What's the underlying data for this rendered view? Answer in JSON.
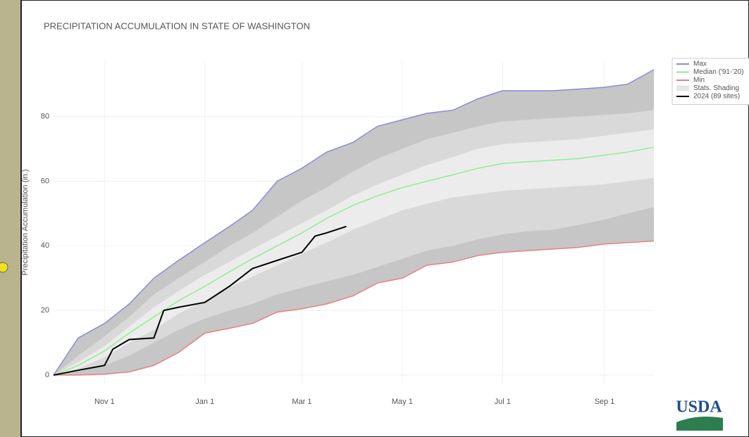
{
  "chart_data": {
    "type": "line",
    "title": "PRECIPITATION ACCUMULATION IN STATE OF WASHINGTON",
    "y_label": "Precipitation Accumulation (in.)",
    "x": [
      0,
      15,
      31,
      46,
      61,
      76,
      92,
      107,
      121,
      136,
      151,
      166,
      182,
      197,
      212,
      227,
      243,
      258,
      273,
      288,
      304,
      319,
      334,
      349,
      365
    ],
    "xlim": [
      0,
      365
    ],
    "xticks": [
      {
        "value": 31,
        "label": "Nov 1"
      },
      {
        "value": 92,
        "label": "Jan 1"
      },
      {
        "value": 151,
        "label": "Mar 1"
      },
      {
        "value": 212,
        "label": "May 1"
      },
      {
        "value": 273,
        "label": "Jul 1"
      },
      {
        "value": 335,
        "label": "Sep 1"
      }
    ],
    "ylim": [
      -2.6,
      96.9
    ],
    "yticks": [
      0,
      20,
      40,
      60,
      80
    ],
    "grid": true,
    "series": [
      {
        "name": "Max",
        "color": "#8a8ae0",
        "values": [
          0,
          11.5,
          16,
          22,
          30,
          35.5,
          41,
          46,
          51,
          60,
          64,
          69,
          72,
          77,
          79,
          81,
          82,
          85.5,
          88,
          88,
          88,
          88.5,
          89,
          90,
          94.5
        ]
      },
      {
        "name": "Median ('91-'20)",
        "color": "#90ee90",
        "values": [
          0,
          3,
          7.5,
          13,
          18,
          23,
          27.5,
          32,
          36,
          40,
          44,
          48.5,
          52.5,
          55.5,
          58,
          60,
          62,
          64,
          65.5,
          66,
          66.5,
          67,
          68,
          69,
          70.5
        ]
      },
      {
        "name": "Min",
        "color": "#e88080",
        "values": [
          0,
          0,
          0.3,
          1,
          3,
          7,
          13,
          14.5,
          16,
          19.5,
          20.5,
          22,
          24.5,
          28.5,
          30,
          34,
          35,
          37,
          38,
          38.5,
          39,
          39.5,
          40.5,
          41,
          41.5
        ]
      },
      {
        "name": "2024 (89 sites)",
        "color": "#000000",
        "x": [
          0,
          15,
          31,
          36,
          46,
          61,
          67,
          76,
          92,
          107,
          121,
          136,
          151,
          159,
          166,
          178
        ],
        "values": [
          0,
          1.5,
          3,
          8,
          11,
          11.5,
          20,
          21,
          22.5,
          27.5,
          33,
          35.5,
          38,
          43,
          44,
          46
        ]
      }
    ],
    "shading": {
      "name": "Stats. Shading",
      "color": "#c6c6c6",
      "bands": [
        {
          "color": "#d9d9d9",
          "lower": [
            0,
            1,
            3,
            6,
            10,
            14,
            17.5,
            20,
            22,
            25,
            27,
            29,
            31,
            33.5,
            36,
            38.5,
            40,
            42,
            43.5,
            44.5,
            45,
            46.5,
            48,
            50,
            52
          ],
          "upper": [
            0,
            6,
            12,
            18,
            25,
            30,
            35,
            40,
            44,
            49,
            54,
            58,
            63,
            67,
            70,
            73,
            75,
            77,
            78.5,
            79,
            79.5,
            80,
            80.5,
            81,
            82
          ]
        },
        {
          "color": "#ececec",
          "lower": [
            0,
            2,
            5.5,
            10,
            14,
            19,
            23,
            27,
            30.5,
            34,
            37.5,
            41,
            45,
            48,
            51,
            53,
            55,
            56,
            57,
            57.5,
            58,
            58.5,
            59,
            60,
            61
          ],
          "upper": [
            0,
            4,
            9,
            15,
            21,
            26,
            31,
            35,
            39,
            43,
            47,
            51,
            55.5,
            59,
            62,
            65,
            67.5,
            70,
            71.5,
            72,
            72.5,
            73,
            74,
            75,
            76
          ]
        }
      ]
    }
  }
}
